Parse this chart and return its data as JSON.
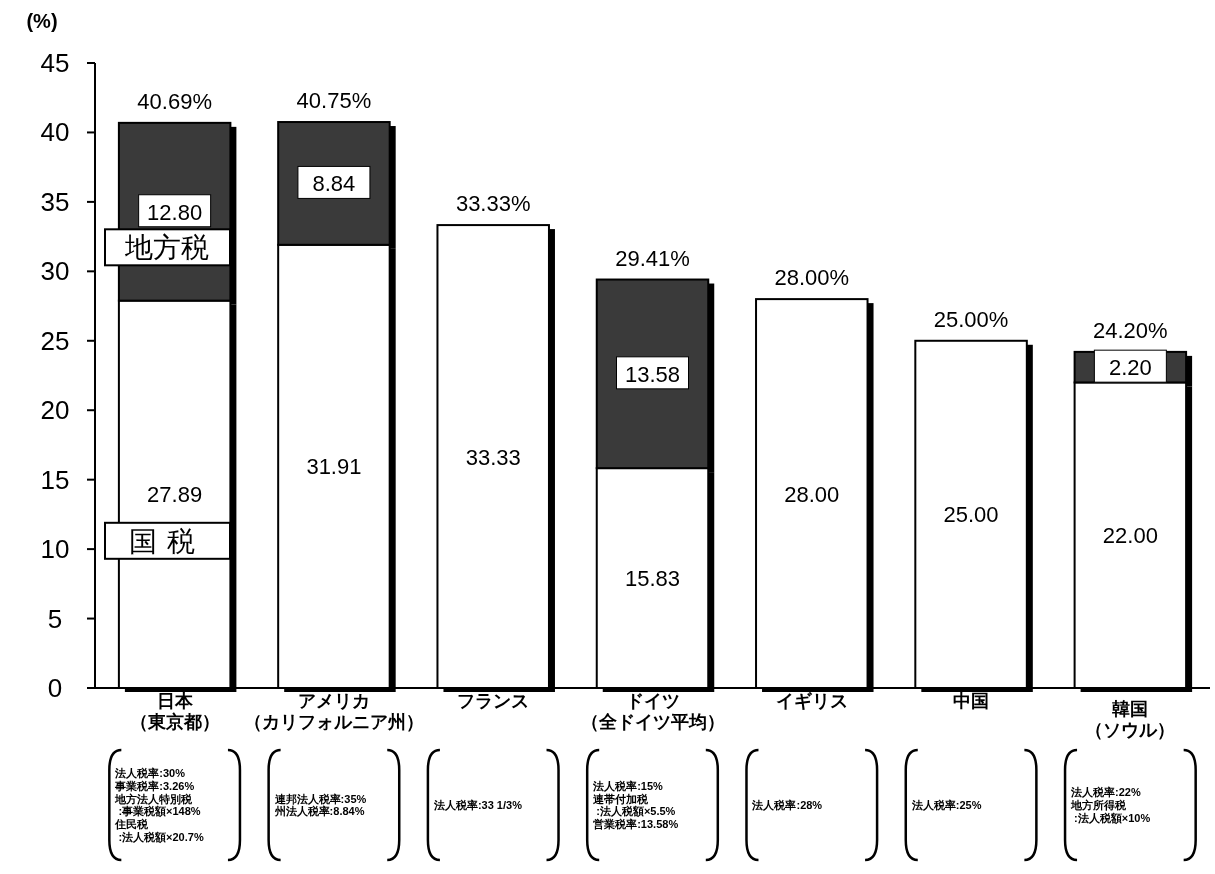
{
  "chart_data": {
    "type": "bar",
    "stacked": true,
    "ylabel": "(%)",
    "ylim": [
      0,
      45
    ],
    "yticks": [
      0,
      5,
      10,
      15,
      20,
      25,
      30,
      35,
      40,
      45
    ],
    "grid": false,
    "legend": "left",
    "categories": [
      "日本（東京都）",
      "アメリカ（カリフォルニア州）",
      "フランス",
      "ドイツ（全ドイツ平均）",
      "イギリス",
      "中国",
      "韓国（ソウル）"
    ],
    "series": [
      {
        "name": "国税",
        "color": "#ffffff",
        "values": [
          27.89,
          31.91,
          33.33,
          15.83,
          28.0,
          25.0,
          22.0
        ],
        "value_labels": [
          "27.89",
          "31.91",
          "33.33",
          "15.83",
          "28.00",
          "25.00",
          "22.00"
        ]
      },
      {
        "name": "地方税",
        "color": "#3a3a3a",
        "values": [
          12.8,
          8.84,
          null,
          13.58,
          null,
          null,
          2.2
        ],
        "value_labels": [
          "12.80",
          "8.84",
          null,
          "13.58",
          null,
          null,
          "2.20"
        ]
      }
    ],
    "totals": [
      "40.69%",
      "40.75%",
      "33.33%",
      "29.41%",
      "28.00%",
      "25.00%",
      "24.20%"
    ],
    "annotations": [
      "法人税率:30%\n事業税率:3.26%\n地方法人特別税\n :事業税額×148%\n住民税\n :法人税額×20.7%",
      "連邦法人税率:35%\n州法人税率:8.84%",
      "法人税率:33 1/3%",
      "法人税率:15%\n連帯付加税\n :法人税額×5.5%\n営業税率:13.58%",
      "法人税率:28%",
      "法人税率:25%",
      "法人税率:22%\n地方所得税\n :法人税額×10%"
    ]
  }
}
